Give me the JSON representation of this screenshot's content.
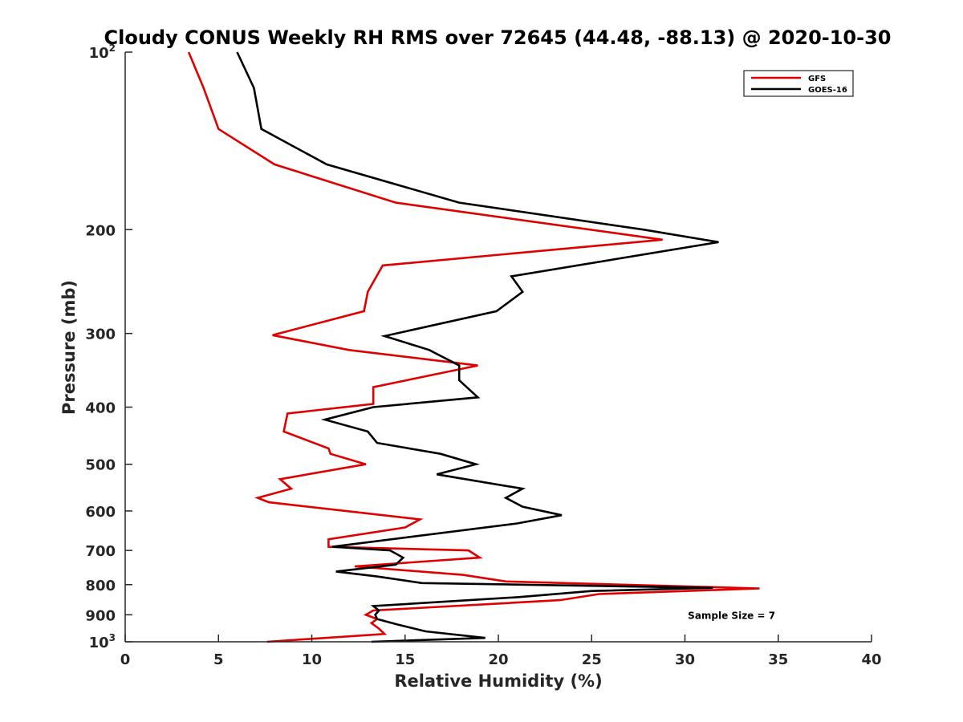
{
  "chart_data": {
    "type": "line",
    "title": "Cloudy CONUS Weekly RH RMS over 72645 (44.48, -88.13) @ 2020-10-30",
    "xlabel": "Relative Humidity (%)",
    "ylabel": "Pressure (mb)",
    "xlim": [
      0,
      40
    ],
    "ylim": [
      100,
      1000
    ],
    "y_scale": "log",
    "y_reversed": true,
    "grid": false,
    "legend_position": "top-right",
    "x_ticks": [
      0,
      5,
      10,
      15,
      20,
      25,
      30,
      35,
      40
    ],
    "x_tick_labels": [
      "0",
      "5",
      "10",
      "15",
      "20",
      "25",
      "30",
      "35",
      "40"
    ],
    "y_ticks": [
      {
        "value": 100,
        "base": "10",
        "exp": "2"
      },
      {
        "value": 200,
        "label": "200"
      },
      {
        "value": 300,
        "label": "300"
      },
      {
        "value": 400,
        "label": "400"
      },
      {
        "value": 500,
        "label": "500"
      },
      {
        "value": 600,
        "label": "600"
      },
      {
        "value": 700,
        "label": "700"
      },
      {
        "value": 800,
        "label": "800"
      },
      {
        "value": 900,
        "label": "900"
      },
      {
        "value": 1000,
        "base": "10",
        "exp": "3"
      }
    ],
    "series": [
      {
        "name": "GFS",
        "color": "#e00000",
        "points": [
          [
            3.4,
            100
          ],
          [
            4.2,
            115
          ],
          [
            5.0,
            135
          ],
          [
            8.0,
            155
          ],
          [
            14.5,
            180
          ],
          [
            28.8,
            208
          ],
          [
            13.8,
            230
          ],
          [
            13.0,
            255
          ],
          [
            12.8,
            275
          ],
          [
            7.9,
            302
          ],
          [
            12.0,
            320
          ],
          [
            18.9,
            340
          ],
          [
            13.3,
            370
          ],
          [
            13.3,
            395
          ],
          [
            8.7,
            410
          ],
          [
            8.5,
            440
          ],
          [
            10.9,
            470
          ],
          [
            11.0,
            480
          ],
          [
            12.9,
            500
          ],
          [
            8.3,
            530
          ],
          [
            8.9,
            550
          ],
          [
            7.1,
            570
          ],
          [
            7.7,
            580
          ],
          [
            15.8,
            620
          ],
          [
            15.0,
            640
          ],
          [
            10.9,
            670
          ],
          [
            10.9,
            690
          ],
          [
            18.4,
            700
          ],
          [
            19.0,
            720
          ],
          [
            12.3,
            745
          ],
          [
            18.1,
            770
          ],
          [
            20.4,
            790
          ],
          [
            34.0,
            812
          ],
          [
            25.4,
            830
          ],
          [
            23.3,
            850
          ],
          [
            13.3,
            885
          ],
          [
            12.9,
            900
          ],
          [
            13.5,
            915
          ],
          [
            13.2,
            930
          ],
          [
            13.6,
            950
          ],
          [
            13.9,
            970
          ],
          [
            7.6,
            1000
          ]
        ]
      },
      {
        "name": "GOES-16",
        "color": "#000000",
        "points": [
          [
            6.0,
            100
          ],
          [
            6.9,
            115
          ],
          [
            7.3,
            135
          ],
          [
            10.8,
            155
          ],
          [
            17.9,
            180
          ],
          [
            27.8,
            200
          ],
          [
            31.8,
            210
          ],
          [
            20.7,
            240
          ],
          [
            21.3,
            255
          ],
          [
            19.9,
            275
          ],
          [
            13.9,
            303
          ],
          [
            16.3,
            320
          ],
          [
            17.9,
            340
          ],
          [
            17.9,
            360
          ],
          [
            18.9,
            385
          ],
          [
            13.3,
            400
          ],
          [
            10.7,
            420
          ],
          [
            13.0,
            440
          ],
          [
            13.5,
            460
          ],
          [
            16.9,
            480
          ],
          [
            18.8,
            500
          ],
          [
            16.7,
            520
          ],
          [
            21.3,
            550
          ],
          [
            20.4,
            570
          ],
          [
            21.3,
            590
          ],
          [
            23.4,
            610
          ],
          [
            21.0,
            630
          ],
          [
            11.1,
            690
          ],
          [
            14.2,
            700
          ],
          [
            14.9,
            720
          ],
          [
            14.5,
            740
          ],
          [
            11.3,
            760
          ],
          [
            13.5,
            775
          ],
          [
            15.9,
            795
          ],
          [
            31.5,
            810
          ],
          [
            25.0,
            820
          ],
          [
            21.1,
            840
          ],
          [
            13.3,
            870
          ],
          [
            13.6,
            885
          ],
          [
            13.4,
            900
          ],
          [
            13.5,
            915
          ],
          [
            14.6,
            935
          ],
          [
            16.1,
            960
          ],
          [
            19.3,
            985
          ],
          [
            13.2,
            1000
          ]
        ]
      }
    ],
    "annotations": [
      {
        "text": "Sample Size = 7",
        "x": 32.5,
        "y": 900
      }
    ]
  }
}
